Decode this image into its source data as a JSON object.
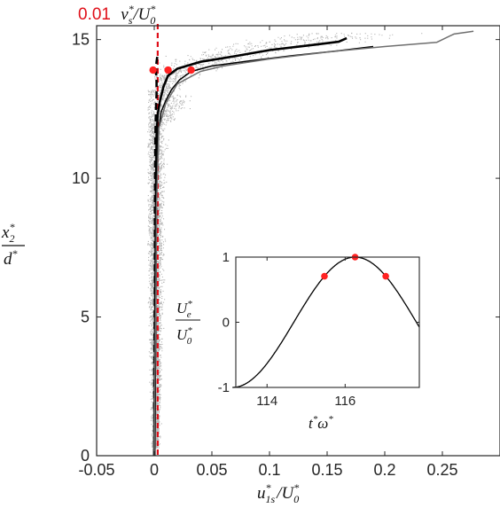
{
  "chart_data": [
    {
      "type": "line",
      "panel": "main",
      "xlabel": {
        "base": "u",
        "sup": "*",
        "sub": "1s",
        "slash": "/",
        "base2": "U",
        "sup2": "*",
        "sub2": "0"
      },
      "ylabel": {
        "num_base": "x",
        "num_sup": "*",
        "num_sub": "2",
        "den_base": "d",
        "den_sup": "*"
      },
      "xlim": [
        -0.05,
        0.3
      ],
      "ylim": [
        0,
        15.5
      ],
      "xticks": [
        "-0.05",
        "0",
        "0.05",
        "0.1",
        "0.15",
        "0.2",
        "0.25"
      ],
      "xtick_values": [
        -0.05,
        0,
        0.05,
        0.1,
        0.15,
        0.2,
        0.25
      ],
      "yticks": [
        "0",
        "5",
        "10",
        "15"
      ],
      "ytick_values": [
        0,
        5,
        10,
        15
      ],
      "grid": false,
      "annotation": {
        "text": "0.01",
        "var": "v",
        "sup": "*",
        "sub": "s",
        "slash": "/",
        "base2": "U",
        "sup2": "*",
        "sub2": "0",
        "color": "#e0101a"
      },
      "reference_line_x": 0.003,
      "scatter_color": "#b4b4b4",
      "series": [
        {
          "style": "dashed",
          "color": "#000000",
          "x": [
            0.0,
            0.0,
            0.0005,
            0.0005,
            0.001,
            0.0015,
            0.002,
            0.002,
            0.0015,
            0.002,
            0.003
          ],
          "y": [
            0.0,
            3.0,
            6.0,
            9.0,
            11.5,
            12.5,
            13.0,
            13.5,
            13.9,
            14.2,
            14.5
          ]
        },
        {
          "style": "solid-thick",
          "color": "#000000",
          "x": [
            0.0,
            0.0005,
            0.001,
            0.0015,
            0.002,
            0.003,
            0.005,
            0.008,
            0.012,
            0.02,
            0.04,
            0.07,
            0.1,
            0.14,
            0.16,
            0.167
          ],
          "y": [
            0.0,
            3.0,
            6.0,
            9.0,
            11.5,
            12.3,
            12.8,
            13.3,
            13.7,
            13.95,
            14.2,
            14.4,
            14.62,
            14.82,
            14.92,
            15.05
          ]
        },
        {
          "style": "solid-thin",
          "color": "#000000",
          "x": [
            0.0005,
            0.001,
            0.0015,
            0.002,
            0.003,
            0.006,
            0.01,
            0.015,
            0.022,
            0.032,
            0.05,
            0.08,
            0.12,
            0.16,
            0.19
          ],
          "y": [
            0.0,
            3.0,
            6.0,
            9.0,
            11.5,
            12.4,
            12.8,
            13.2,
            13.55,
            13.85,
            14.05,
            14.22,
            14.42,
            14.6,
            14.75
          ]
        },
        {
          "style": "solid-thin",
          "color": "#6e6e6e",
          "x": [
            0.0,
            0.0005,
            0.0015,
            0.002,
            0.004,
            0.01,
            0.02,
            0.04,
            0.06,
            0.1,
            0.15,
            0.2,
            0.245,
            0.26,
            0.277
          ],
          "y": [
            0.0,
            3.0,
            6.0,
            9.0,
            11.8,
            12.7,
            13.4,
            13.85,
            14.05,
            14.3,
            14.55,
            14.75,
            14.9,
            15.2,
            15.3
          ]
        }
      ],
      "markers": {
        "color": "#ff2222",
        "x": [
          -0.001,
          0.012,
          0.032
        ],
        "y": [
          13.9,
          13.9,
          13.9
        ]
      }
    },
    {
      "type": "line",
      "panel": "inset",
      "xlabel": {
        "base": "t",
        "sup": "*",
        "base2": "ω",
        "sup2": "*"
      },
      "ylabel": {
        "num_base": "U",
        "num_sup": "*",
        "num_sub": "e",
        "den_base": "U",
        "den_sup": "*",
        "den_sub": "0"
      },
      "xlim": [
        113.2,
        117.9
      ],
      "ylim": [
        -1,
        1
      ],
      "xticks": [
        "114",
        "116"
      ],
      "xtick_values": [
        114,
        116
      ],
      "yticks": [
        "-1",
        "0",
        "1"
      ],
      "ytick_values": [
        -1,
        0,
        1
      ],
      "curve": {
        "kind": "cosine",
        "peak_x": 116.255,
        "period": 6.2832,
        "color": "#000000"
      },
      "markers": {
        "color": "#ff2222",
        "x": [
          115.47,
          116.255,
          117.04
        ],
        "y": [
          0.707,
          1.0,
          0.707
        ]
      }
    }
  ]
}
